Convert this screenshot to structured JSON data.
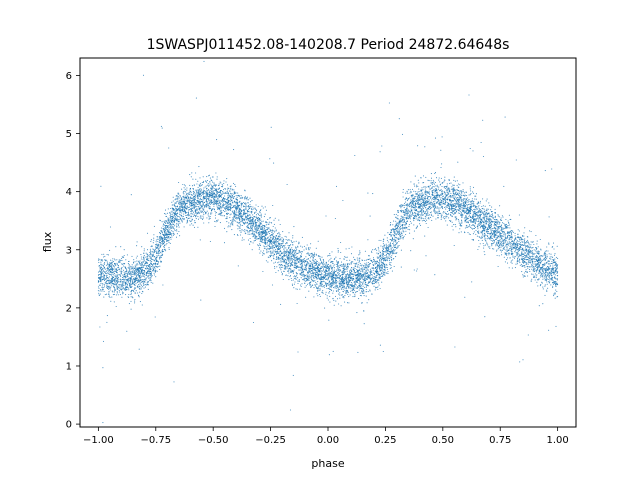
{
  "chart_data": {
    "type": "scatter",
    "title": "1SWASPJ011452.08-140208.7 Period 24872.64648s",
    "xlabel": "phase",
    "ylabel": "flux",
    "xlim": [
      -1.08,
      1.08
    ],
    "ylim": [
      -0.05,
      6.3
    ],
    "x_ticks": [
      -1.0,
      -0.75,
      -0.5,
      -0.25,
      0.0,
      0.25,
      0.5,
      0.75,
      1.0
    ],
    "x_tick_labels": [
      "−1.00",
      "−0.75",
      "−0.50",
      "−0.25",
      "0.00",
      "0.25",
      "0.50",
      "0.75",
      "1.00"
    ],
    "y_ticks": [
      0,
      1,
      2,
      3,
      4,
      5,
      6
    ],
    "y_tick_labels": [
      "0",
      "1",
      "2",
      "3",
      "4",
      "5",
      "6"
    ],
    "grid": false,
    "point_color": "#1f77b4",
    "series": [
      {
        "name": "",
        "x": [
          -1.0,
          -0.95,
          -0.9,
          -0.85,
          -0.8,
          -0.75,
          -0.7,
          -0.65,
          -0.6,
          -0.55,
          -0.5,
          -0.45,
          -0.4,
          -0.35,
          -0.3,
          -0.25,
          -0.2,
          -0.15,
          -0.1,
          -0.05,
          0.0,
          0.05,
          0.1,
          0.15,
          0.2,
          0.25,
          0.3,
          0.35,
          0.4,
          0.45,
          0.5,
          0.55,
          0.6,
          0.65,
          0.7,
          0.75,
          0.8,
          0.85,
          0.9,
          0.95,
          1.0
        ],
        "y": [
          2.55,
          2.55,
          2.52,
          2.53,
          2.6,
          2.85,
          3.35,
          3.7,
          3.8,
          3.85,
          3.9,
          3.85,
          3.72,
          3.55,
          3.35,
          3.15,
          2.95,
          2.8,
          2.68,
          2.6,
          2.55,
          2.52,
          2.52,
          2.55,
          2.6,
          2.85,
          3.3,
          3.7,
          3.8,
          3.85,
          3.88,
          3.82,
          3.7,
          3.55,
          3.4,
          3.25,
          3.1,
          2.95,
          2.8,
          2.68,
          2.58
        ]
      }
    ]
  }
}
